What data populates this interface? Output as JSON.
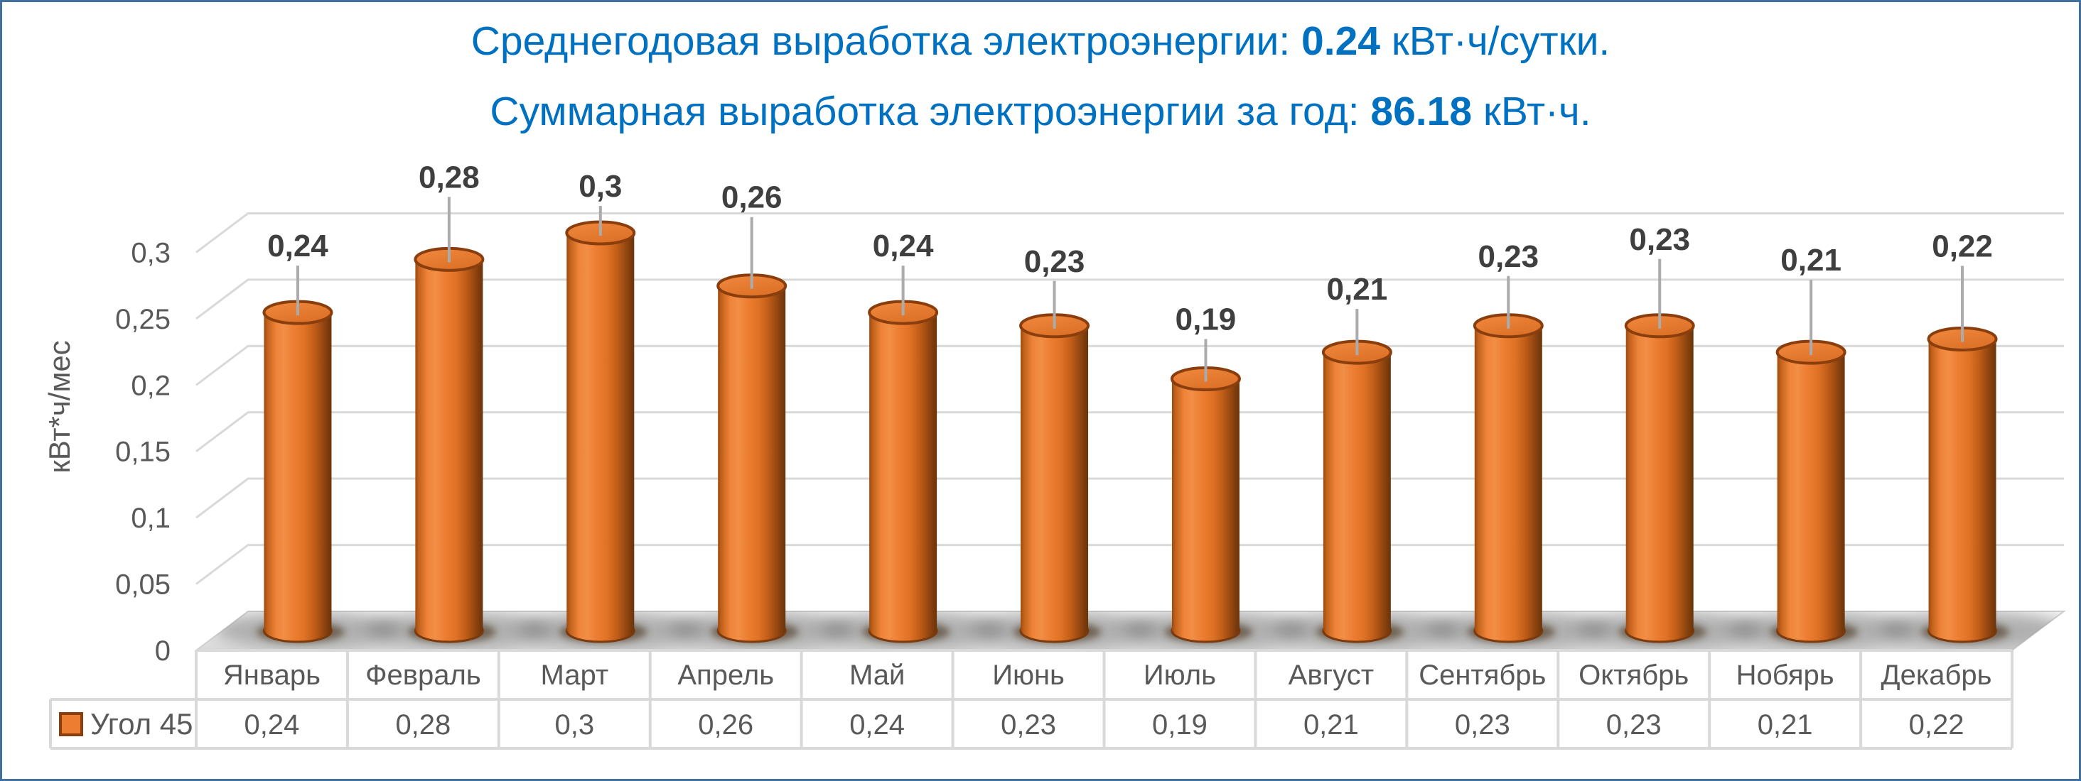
{
  "frame": {
    "border_color": "#41719C",
    "background": "#ffffff"
  },
  "title": {
    "color": "#0070C0",
    "line1_prefix": "Среднегодовая выработка электроэнергии: ",
    "line1_value": "0.24",
    "line1_suffix": " кВт·ч/сутки.",
    "line2_prefix": "Суммарная выработка электроэнергии за год: ",
    "line2_value": "86.18",
    "line2_suffix": " кВт·ч."
  },
  "chart_data": {
    "type": "bar",
    "subtype": "3d-cylinder",
    "title": "Среднегодовая выработка электроэнергии: 0.24 кВт·ч/сутки. Суммарная выработка электроэнергии за год: 86.18 кВт·ч.",
    "categories": [
      "Январь",
      "Февраль",
      "Март",
      "Апрель",
      "Май",
      "Июнь",
      "Июль",
      "Август",
      "Сентябрь",
      "Октябрь",
      "Нобярь",
      "Декабрь"
    ],
    "series": [
      {
        "name": "Угол 45",
        "values": [
          0.24,
          0.28,
          0.3,
          0.26,
          0.24,
          0.23,
          0.19,
          0.21,
          0.23,
          0.23,
          0.21,
          0.22
        ]
      }
    ],
    "data_labels": [
      "0,24",
      "0,28",
      "0,3",
      "0,26",
      "0,24",
      "0,23",
      "0,19",
      "0,21",
      "0,23",
      "0,23",
      "0,21",
      "0,22"
    ],
    "table_values": [
      "0,24",
      "0,28",
      "0,3",
      "0,26",
      "0,24",
      "0,23",
      "0,19",
      "0,21",
      "0,23",
      "0,23",
      "0,21",
      "0,22"
    ],
    "xlabel": "",
    "ylabel": "кВт*ч/мес",
    "ylim": [
      0,
      0.3
    ],
    "y_tick_step": 0.05,
    "y_tick_labels": [
      "0",
      "0,05",
      "0,1",
      "0,15",
      "0,2",
      "0,25",
      "0,3"
    ],
    "decimal_separator": ",",
    "grid": true,
    "legend": {
      "label": "Угол 45",
      "position": "data-table-left"
    },
    "colors": {
      "bar": "#ED7D31",
      "bar_rim": "#8A3E0E",
      "gridline": "#D9D9D9",
      "axis_text": "#595959",
      "data_label_text": "#3F3F3F",
      "leader_line": "#ABABAB",
      "table_border": "#D9D9D9",
      "floor": "#E3E3E3"
    }
  }
}
